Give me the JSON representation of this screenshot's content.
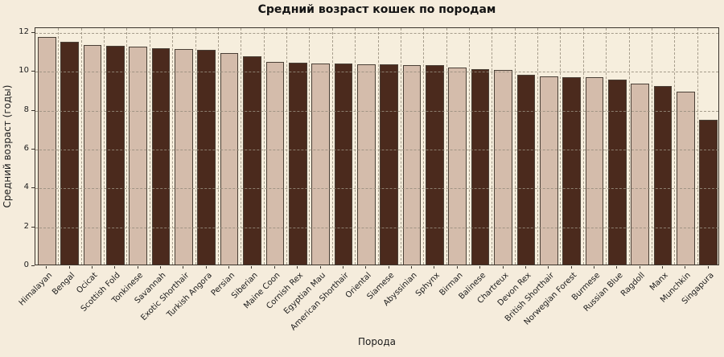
{
  "chart_data": {
    "type": "bar",
    "title": "Средний возраст кошек по породам",
    "xlabel": "Порода",
    "ylabel": "Средний возраст (годы)",
    "categories": [
      "Himalayan",
      "Bengal",
      "Ocicat",
      "Scottish Fold",
      "Tonkinese",
      "Savannah",
      "Exotic Shorthair",
      "Turkish Angora",
      "Persian",
      "Siberian",
      "Maine Coon",
      "Cornish Rex",
      "Egyptian Mau",
      "American Shorthair",
      "Oriental",
      "Siamese",
      "Abyssinian",
      "Sphynx",
      "Birman",
      "Balinese",
      "Chartreux",
      "Devon Rex",
      "British Shorthair",
      "Norwegian Forest",
      "Burmese",
      "Russian Blue",
      "Ragdoll",
      "Manx",
      "Munchkin",
      "Singapura"
    ],
    "values": [
      11.7,
      11.45,
      11.3,
      11.25,
      11.2,
      11.15,
      11.1,
      11.05,
      10.9,
      10.7,
      10.45,
      10.4,
      10.35,
      10.35,
      10.3,
      10.3,
      10.25,
      10.25,
      10.15,
      10.05,
      10.0,
      9.75,
      9.7,
      9.65,
      9.65,
      9.5,
      9.3,
      9.2,
      8.9,
      7.45
    ],
    "yticks": [
      0,
      2,
      4,
      6,
      8,
      10,
      12
    ],
    "ylim": [
      0,
      12.25
    ],
    "grid": "dashed-both-axes-over-bars",
    "legend": "none",
    "bar_color_light": "#d4bcab",
    "bar_color_dark": "#4b2a1d",
    "bar_pattern": "alternating-light-dark",
    "background_color": "#f5ecdc",
    "xtick_rotation_deg": 45
  }
}
